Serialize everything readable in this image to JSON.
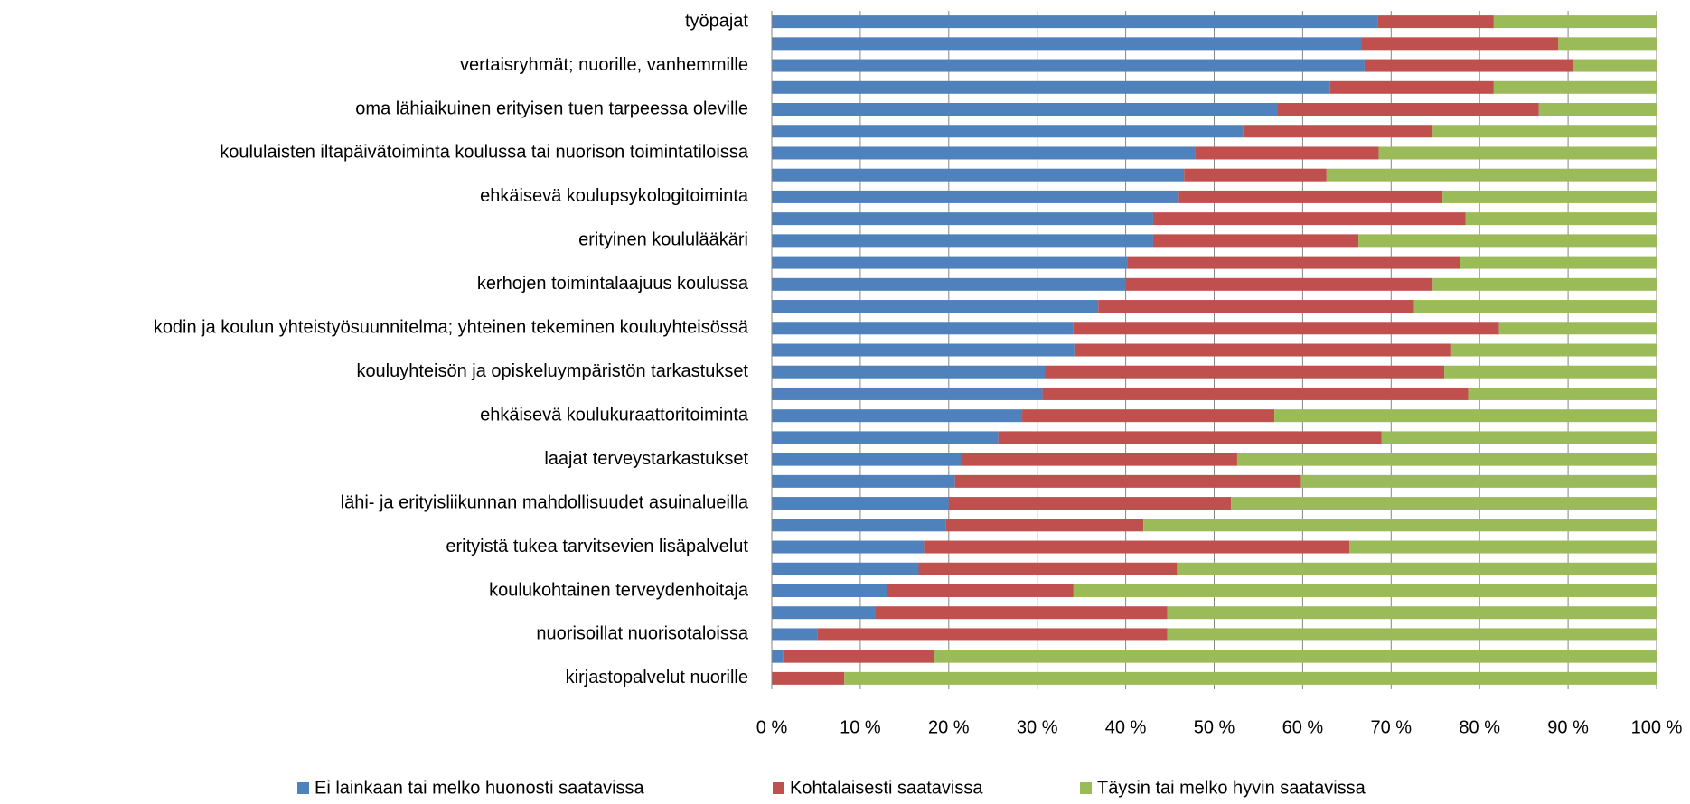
{
  "chart_data": {
    "type": "stacked_barh",
    "categories": [
      "työpajat",
      null,
      "vertaisryhmät; nuorille, vanhemmille",
      null,
      "oma lähiaikuinen erityisen tuen tarpeessa oleville",
      null,
      "koululaisten iltapäivätoiminta koulussa tai nuorison toimintatiloissa",
      null,
      "ehkäisevä koulupsykologitoiminta",
      null,
      "erityinen koululääkäri",
      null,
      "kerhojen toimintalaajuus koulussa",
      null,
      "kodin ja koulun yhteistyösuunnitelma; yhteinen tekeminen kouluyhteisössä",
      null,
      "kouluyhteisön ja opiskeluympäristön tarkastukset",
      null,
      "ehkäisevä koulukuraattoritoiminta",
      null,
      "laajat terveystarkastukset",
      null,
      "lähi- ja erityisliikunnan mahdollisuudet asuinalueilla",
      null,
      "erityistä tukea tarvitsevien lisäpalvelut",
      null,
      "koulukohtainen terveydenhoitaja",
      null,
      "nuorisoillat nuorisotaloissa",
      null,
      "kirjastopalvelut nuorille"
    ],
    "series": [
      {
        "name": "Ei lainkaan tai melko huonosti saatavissa",
        "color": "#4f81bd",
        "values": [
          68.5,
          66.7,
          67.0,
          63.1,
          57.2,
          53.3,
          47.9,
          46.6,
          46.0,
          43.1,
          43.1,
          40.2,
          40.0,
          36.9,
          34.1,
          34.2,
          30.9,
          30.6,
          28.3,
          25.6,
          21.4,
          20.7,
          20.0,
          19.7,
          17.2,
          16.6,
          13.0,
          11.7,
          5.2,
          1.3,
          0
        ]
      },
      {
        "name": "Kohtalaisesti saatavissa",
        "color": "#c0504d",
        "values": [
          13.1,
          22.2,
          23.6,
          18.5,
          29.5,
          21.4,
          20.7,
          16.1,
          29.8,
          35.3,
          23.2,
          37.6,
          34.7,
          35.7,
          48.1,
          42.5,
          45.1,
          48.1,
          28.5,
          43.3,
          31.2,
          39.1,
          31.9,
          22.3,
          48.1,
          29.2,
          21.1,
          33.0,
          39.5,
          17.0,
          8.2
        ]
      },
      {
        "name": "Täysin tai melko hyvin saatavissa",
        "color": "#9bbb59",
        "values": [
          18.4,
          11.1,
          9.4,
          18.4,
          13.3,
          25.3,
          31.4,
          37.3,
          24.2,
          21.6,
          33.7,
          22.2,
          25.3,
          27.4,
          17.8,
          23.3,
          24.0,
          21.3,
          43.2,
          31.1,
          47.4,
          40.2,
          48.1,
          58.0,
          34.7,
          54.2,
          65.9,
          55.3,
          55.3,
          81.7,
          91.8
        ]
      }
    ],
    "xlim": [
      0,
      100
    ],
    "xticks": [
      {
        "value": 0,
        "label": "0 %"
      },
      {
        "value": 10,
        "label": "10 %"
      },
      {
        "value": 20,
        "label": "20 %"
      },
      {
        "value": 30,
        "label": "30 %"
      },
      {
        "value": 40,
        "label": "40 %"
      },
      {
        "value": 50,
        "label": "50 %"
      },
      {
        "value": 60,
        "label": "60 %"
      },
      {
        "value": 70,
        "label": "70 %"
      },
      {
        "value": 80,
        "label": "80 %"
      },
      {
        "value": 90,
        "label": "90 %"
      },
      {
        "value": 100,
        "label": "100 %"
      }
    ],
    "grid": true,
    "legend": "bottom"
  }
}
